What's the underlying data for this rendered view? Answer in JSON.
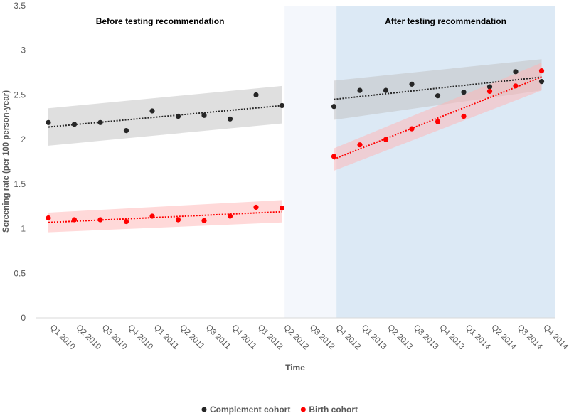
{
  "chart_data": {
    "type": "scatter",
    "title": "",
    "xlabel": "Time",
    "ylabel": "Screening rate (per 100 person-year)",
    "ylim": [
      0,
      3.5
    ],
    "yticks": [
      "0",
      "0.5",
      "1",
      "1.5",
      "2",
      "2.5",
      "3",
      "3.5"
    ],
    "categories": [
      "Q1 2010",
      "Q2 2010",
      "Q3 2010",
      "Q4 2010",
      "Q1 2011",
      "Q2 2011",
      "Q3 2011",
      "Q4 2011",
      "Q1 2012",
      "Q2 2012",
      "Q3 2012",
      "Q4 2012",
      "Q1 2013",
      "Q2 2013",
      "Q3 2013",
      "Q4 2013",
      "Q1 2014",
      "Q2 2014",
      "Q3 2014",
      "Q4 2014"
    ],
    "regions": [
      {
        "label": "Before testing recommendation",
        "from": "Q1 2010",
        "to": "Q2 2012",
        "color": "#ffffff"
      },
      {
        "label": "",
        "from": "Q2 2012",
        "to": "Q4 2012",
        "color": "#f4f7fc"
      },
      {
        "label": "After testing recommendation",
        "from": "Q4 2012",
        "to": "Q4 2014",
        "color": "#dce9f5"
      }
    ],
    "series": [
      {
        "name": "Complement cohort",
        "color": "#262626",
        "band_color": "#bfbfbf",
        "values": [
          2.19,
          2.17,
          2.19,
          2.1,
          2.32,
          2.26,
          2.27,
          2.23,
          2.5,
          2.38,
          null,
          2.37,
          2.55,
          2.55,
          2.62,
          2.49,
          2.53,
          2.59,
          2.76,
          2.65
        ],
        "trends": [
          {
            "from": 0,
            "to": 9,
            "start": 2.14,
            "end": 2.38,
            "band_low": [
              1.93,
              2.18
            ],
            "band_high": [
              2.35,
              2.6
            ]
          },
          {
            "from": 11,
            "to": 19,
            "start": 2.45,
            "end": 2.7,
            "band_low": [
              2.22,
              2.55
            ],
            "band_high": [
              2.66,
              2.9
            ]
          }
        ]
      },
      {
        "name": "Birth cohort",
        "color": "#ff0000",
        "band_color": "#ffb3b3",
        "values": [
          1.12,
          1.1,
          1.1,
          1.08,
          1.14,
          1.1,
          1.09,
          1.14,
          1.24,
          1.23,
          null,
          1.81,
          1.94,
          2.0,
          2.12,
          2.2,
          2.26,
          2.54,
          2.6,
          2.77
        ],
        "trends": [
          {
            "from": 0,
            "to": 9,
            "start": 1.07,
            "end": 1.19,
            "band_low": [
              0.96,
              1.07
            ],
            "band_high": [
              1.18,
              1.32
            ]
          },
          {
            "from": 11,
            "to": 19,
            "start": 1.78,
            "end": 2.7,
            "band_low": [
              1.65,
              2.55
            ],
            "band_high": [
              1.9,
              2.86
            ]
          }
        ]
      }
    ],
    "legend": {
      "placement": "bottom-center"
    },
    "grid": false
  }
}
